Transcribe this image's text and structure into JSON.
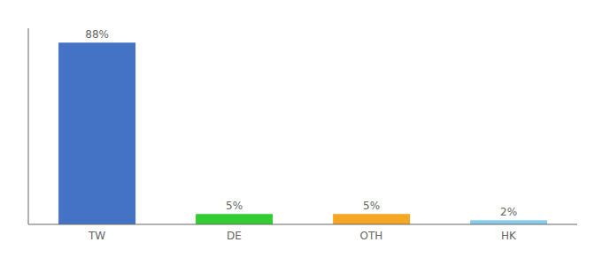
{
  "chart_data": {
    "type": "bar",
    "categories": [
      "TW",
      "DE",
      "OTH",
      "HK"
    ],
    "values": [
      88,
      5,
      5,
      2
    ],
    "value_labels": [
      "88%",
      "5%",
      "5%",
      "2%"
    ],
    "colors": [
      "#4472c4",
      "#33cc33",
      "#f5a623",
      "#87ceeb"
    ],
    "data_labels": true,
    "ylim": [
      0,
      95
    ],
    "tick_labels": "x",
    "grid": false
  }
}
